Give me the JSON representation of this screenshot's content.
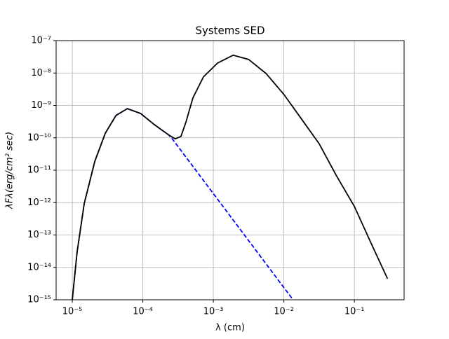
{
  "chart_data": {
    "type": "line",
    "title": "Systems SED",
    "x_label": "λ (cm)",
    "y_label": "λFλ(erg/cm² sec)",
    "xscale": "log",
    "yscale": "log",
    "grid": true,
    "xlim": [
      5.9e-06,
      0.507
    ],
    "ylim": [
      1e-15,
      1e-07
    ],
    "xticks": [
      {
        "value": 1e-05,
        "label": "10⁻⁵"
      },
      {
        "value": 0.0001,
        "label": "10⁻⁴"
      },
      {
        "value": 0.001,
        "label": "10⁻³"
      },
      {
        "value": 0.01,
        "label": "10⁻²"
      },
      {
        "value": 0.1,
        "label": "10⁻¹"
      }
    ],
    "yticks": [
      {
        "value": 1e-15,
        "label": "10⁻¹⁵"
      },
      {
        "value": 1e-14,
        "label": "10⁻¹⁴"
      },
      {
        "value": 1e-13,
        "label": "10⁻¹³"
      },
      {
        "value": 1e-12,
        "label": "10⁻¹²"
      },
      {
        "value": 1e-11,
        "label": "10⁻¹¹"
      },
      {
        "value": 1e-10,
        "label": "10⁻¹⁰"
      },
      {
        "value": 1e-09,
        "label": "10⁻⁹"
      },
      {
        "value": 1e-08,
        "label": "10⁻⁸"
      },
      {
        "value": 1e-07,
        "label": "10⁻⁷"
      }
    ],
    "series": [
      {
        "color": "#0000ff",
        "style": "dashed",
        "x": [
          1e-05,
          1.17e-05,
          1.48e-05,
          2.09e-05,
          2.95e-05,
          4.17e-05,
          6.03e-05,
          9.33e-05,
          0.000145,
          0.000229,
          0.000257,
          0.001,
          0.005,
          0.0135
        ],
        "values": [
          1e-15,
          2.95e-14,
          9.55e-13,
          1.91e-11,
          1.41e-10,
          4.9e-10,
          7.94e-10,
          5.62e-10,
          2.57e-10,
          1.26e-10,
          9.77e-11,
          1.9e-12,
          1.78e-14,
          1e-15
        ]
      },
      {
        "color": "#000000",
        "style": "solid",
        "x": [
          1e-05,
          1.17e-05,
          1.48e-05,
          2.09e-05,
          2.95e-05,
          4.17e-05,
          6.03e-05,
          9.33e-05,
          0.000145,
          0.000229,
          0.000288,
          0.000347,
          0.000407,
          0.000513,
          0.000724,
          0.00115,
          0.00191,
          0.00316,
          0.00562,
          0.01,
          0.0178,
          0.0316,
          0.055,
          0.1,
          0.174,
          0.295
        ],
        "values": [
          1e-15,
          2.95e-14,
          9.55e-13,
          1.91e-11,
          1.41e-10,
          4.9e-10,
          7.94e-10,
          5.62e-10,
          2.57e-10,
          1.26e-10,
          9.3e-11,
          1.1e-10,
          2.95e-10,
          1.7e-09,
          7.59e-09,
          2.04e-08,
          3.55e-08,
          2.63e-08,
          9.55e-09,
          2.19e-09,
          3.8e-10,
          6.61e-11,
          7.08e-12,
          7.59e-13,
          5.37e-14,
          4.47e-15
        ]
      }
    ]
  }
}
